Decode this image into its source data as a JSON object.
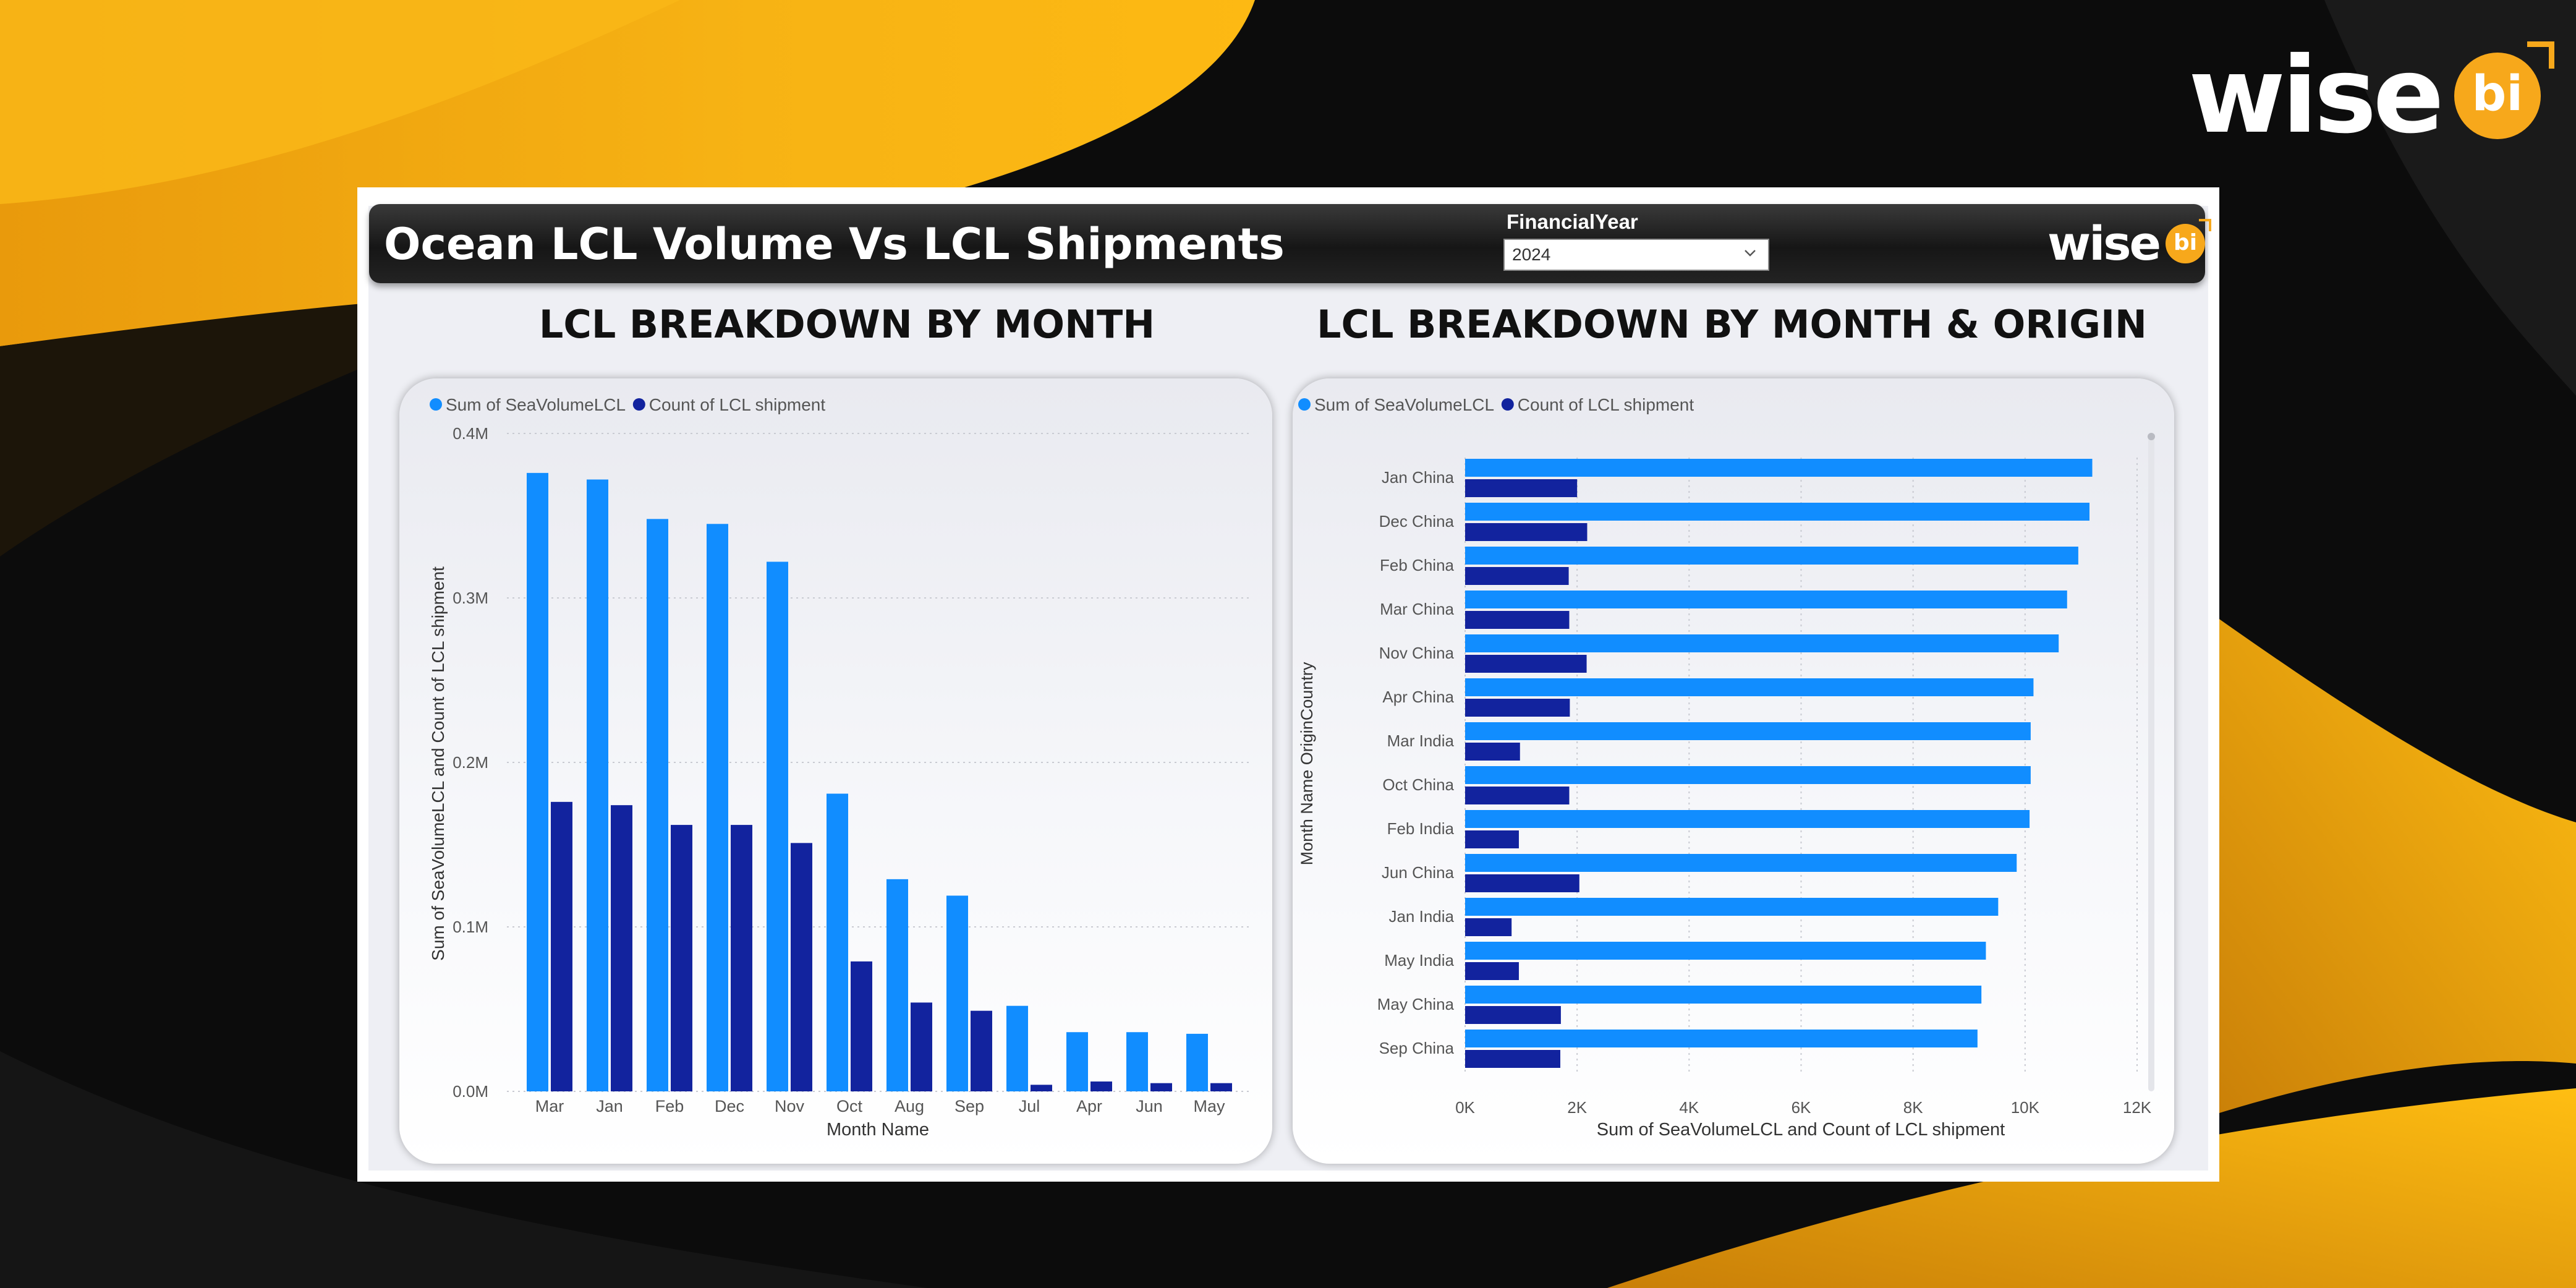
{
  "brand": {
    "word": "wise",
    "badge": "bi"
  },
  "header": {
    "title": "Ocean LCL Volume Vs LCL Shipments"
  },
  "filter": {
    "label": "FinancialYear",
    "selected": "2024"
  },
  "colors": {
    "light_series": "#118dff",
    "dark_series": "#12239e",
    "accent": "#f7a81b"
  },
  "chart_data": [
    {
      "title": "LCL BREAKDOWN BY MONTH",
      "type": "bar",
      "categories": [
        "Mar",
        "Jan",
        "Feb",
        "Dec",
        "Nov",
        "Oct",
        "Aug",
        "Sep",
        "Jul",
        "Apr",
        "Jun",
        "May"
      ],
      "series": [
        {
          "name": "Sum of SeaVolumeLCL",
          "values": [
            0.376,
            0.372,
            0.348,
            0.345,
            0.322,
            0.181,
            0.129,
            0.119,
            0.052,
            0.036,
            0.036,
            0.035
          ]
        },
        {
          "name": "Count of LCL shipment",
          "values": [
            0.176,
            0.174,
            0.162,
            0.162,
            0.151,
            0.079,
            0.054,
            0.049,
            0.004,
            0.006,
            0.005,
            0.005
          ]
        }
      ],
      "yticks": [
        "0.0M",
        "0.1M",
        "0.2M",
        "0.3M",
        "0.4M"
      ],
      "ylim": [
        0,
        0.4
      ],
      "xlabel": "Month Name",
      "ylabel": "Sum of SeaVolumeLCL and Count of LCL shipment",
      "legend": "top-left"
    },
    {
      "title": "LCL BREAKDOWN BY MONTH & ORIGIN",
      "type": "bar",
      "orientation": "horizontal",
      "categories": [
        "Jan China",
        "Dec China",
        "Feb China",
        "Mar China",
        "Nov China",
        "Apr China",
        "Mar India",
        "Oct China",
        "Feb India",
        "Jun China",
        "Jan India",
        "May India",
        "May China",
        "Sep China"
      ],
      "series": [
        {
          "name": "Sum of SeaVolumeLCL",
          "values": [
            11200,
            11150,
            10950,
            10750,
            10600,
            10150,
            10100,
            10100,
            10080,
            9850,
            9520,
            9300,
            9220,
            9150
          ]
        },
        {
          "name": "Count of LCL shipment",
          "values": [
            2000,
            2180,
            1850,
            1860,
            2170,
            1870,
            980,
            1860,
            960,
            2040,
            830,
            960,
            1710,
            1700
          ]
        }
      ],
      "xticks": [
        "0K",
        "2K",
        "4K",
        "6K",
        "8K",
        "10K",
        "12K"
      ],
      "xlim": [
        0,
        12000
      ],
      "xlabel": "Sum of SeaVolumeLCL and Count of LCL shipment",
      "ylabel": "Month Name OriginCountry",
      "legend": "top-left"
    }
  ]
}
